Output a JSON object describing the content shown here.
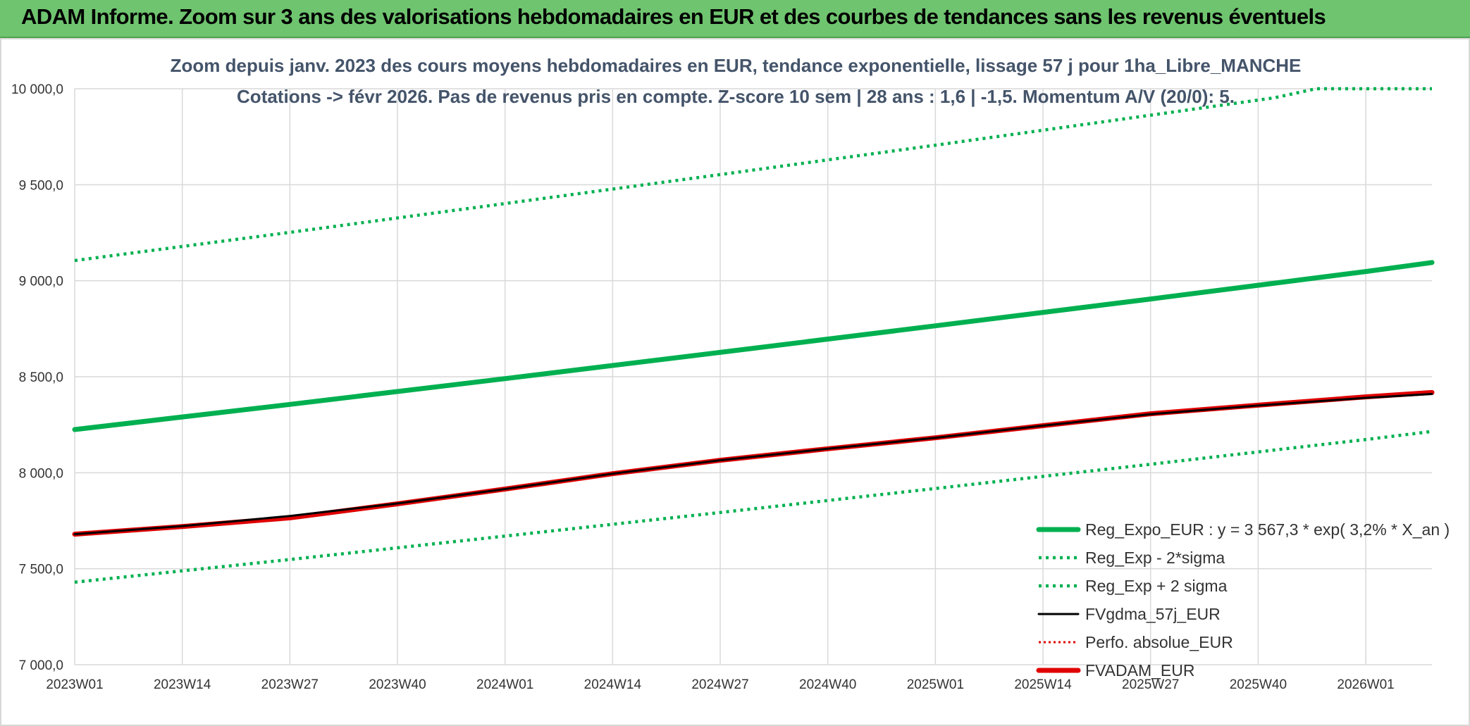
{
  "banner": {
    "title": "ADAM Informe. Zoom sur 3 ans des valorisations hebdomadaires en EUR et des courbes de tendances sans les revenus éventuels"
  },
  "chart_data": {
    "type": "line",
    "title_line1": "Zoom depuis janv. 2023 des cours moyens hebdomadaires en EUR, tendance exponentielle, lissage 57 j pour 1ha_Libre_MANCHE",
    "title_line2": "Cotations -> févr 2026. Pas de revenus pris en compte. Z-score 10 sem | 28 ans : 1,6 | -1,5. Momentum A/V (20/0): 5.",
    "ylim": [
      7000,
      10000
    ],
    "y_ticks": [
      7000,
      7500,
      8000,
      8500,
      9000,
      9500,
      10000
    ],
    "y_tick_labels": [
      "7 000,0",
      "7 500,0",
      "8 000,0",
      "8 500,0",
      "9 000,0",
      "9 500,0",
      "10 000,0"
    ],
    "x_tick_labels": [
      "2023W01",
      "2023W14",
      "2023W27",
      "2023W40",
      "2024W01",
      "2024W14",
      "2024W27",
      "2024W40",
      "2025W01",
      "2025W14",
      "2025W27",
      "2025W40",
      "2026W01"
    ],
    "x_tick_weeks": [
      0,
      13,
      26,
      39,
      52,
      65,
      78,
      91,
      104,
      117,
      130,
      143,
      156
    ],
    "x_max_week": 164,
    "grid": true,
    "legend_position": "bottom-right",
    "series": [
      {
        "name": "Reg_Expo_EUR : y = 3 567,3 * exp( 3,2% *  X_an )",
        "color": "#00b050",
        "style": "solid-thick",
        "x": [
          0,
          26,
          52,
          78,
          104,
          130,
          156,
          164
        ],
        "values": [
          8225,
          8356,
          8490,
          8627,
          8765,
          8905,
          9048,
          9095
        ]
      },
      {
        "name": "Reg_Exp - 2*sigma",
        "color": "#00b050",
        "style": "dotted",
        "x": [
          0,
          26,
          52,
          78,
          104,
          130,
          156,
          164
        ],
        "values": [
          7430,
          7548,
          7670,
          7793,
          7918,
          8044,
          8173,
          8215
        ]
      },
      {
        "name": "Reg_Exp + 2 sigma",
        "color": "#00b050",
        "style": "dotted",
        "x": [
          0,
          26,
          52,
          78,
          104,
          130,
          145,
          150,
          164
        ],
        "values": [
          9105,
          9252,
          9402,
          9553,
          9706,
          9862,
          9953,
          10000,
          10000
        ]
      },
      {
        "name": "FVgdma_57j_EUR",
        "color": "#000000",
        "style": "solid-thin",
        "x": [
          0,
          13,
          26,
          39,
          52,
          65,
          78,
          91,
          104,
          117,
          130,
          143,
          156,
          164
        ],
        "values": [
          7680,
          7722,
          7775,
          7840,
          7915,
          7995,
          8065,
          8125,
          8182,
          8245,
          8305,
          8350,
          8390,
          8410
        ]
      },
      {
        "name": "Perfo. absolue_EUR",
        "color": "#e00000",
        "style": "dotted-thin",
        "x": [],
        "values": []
      },
      {
        "name": "FVADAM_EUR",
        "color": "#e00000",
        "style": "solid-thick",
        "x": [
          0,
          13,
          26,
          39,
          52,
          65,
          78,
          91,
          104,
          117,
          130,
          143,
          156,
          164
        ],
        "values": [
          7680,
          7720,
          7765,
          7838,
          7915,
          7995,
          8065,
          8125,
          8182,
          8245,
          8307,
          8352,
          8395,
          8418
        ]
      }
    ]
  }
}
